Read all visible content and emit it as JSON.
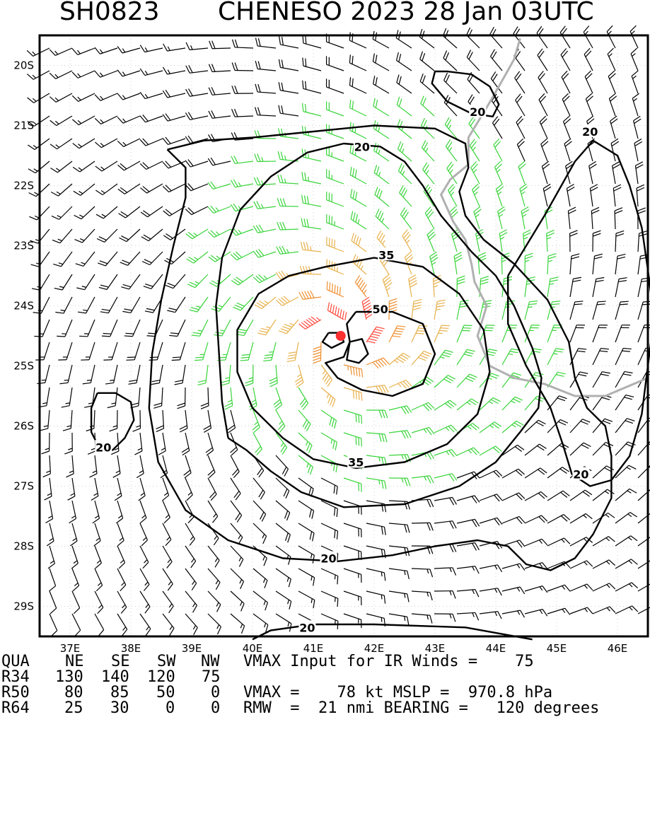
{
  "title": {
    "storm_id": "SH0823",
    "storm_time": "CHENESO 2023 28 Jan 03UTC"
  },
  "map": {
    "lon_range": [
      36.5,
      46.5
    ],
    "lat_range": [
      -29.5,
      -19.5
    ],
    "lon_labels": [
      "37E",
      "38E",
      "39E",
      "40E",
      "41E",
      "42E",
      "43E",
      "44E",
      "45E",
      "46E"
    ],
    "lat_labels": [
      "20S",
      "21S",
      "22S",
      "23S",
      "24S",
      "25S",
      "26S",
      "27S",
      "28S",
      "29S"
    ],
    "center": {
      "lon": 41.45,
      "lat": -24.5
    },
    "center_color": "#ff3030",
    "contours": [
      {
        "label": "20",
        "rings": [
          [
            [
              40.0,
              -29.55
            ],
            [
              40.3,
              -29.4
            ],
            [
              41.0,
              -29.3
            ],
            [
              42.0,
              -29.3
            ],
            [
              43.5,
              -29.35
            ],
            [
              44.6,
              -29.55
            ]
          ],
          [
            [
              39.6,
              -26.2
            ],
            [
              39.9,
              -26.4
            ],
            [
              40.3,
              -26.75
            ],
            [
              40.8,
              -27.1
            ],
            [
              41.5,
              -27.35
            ],
            [
              42.5,
              -27.3
            ],
            [
              43.4,
              -27.0
            ],
            [
              44.0,
              -26.6
            ],
            [
              44.4,
              -26.1
            ],
            [
              44.7,
              -25.7
            ],
            [
              44.75,
              -25.2
            ],
            [
              44.6,
              -24.7
            ],
            [
              44.3,
              -24.0
            ],
            [
              44.0,
              -23.5
            ],
            [
              43.6,
              -23.1
            ],
            [
              43.1,
              -22.5
            ],
            [
              42.8,
              -22.0
            ],
            [
              42.5,
              -21.6
            ],
            [
              42.1,
              -21.35
            ],
            [
              41.5,
              -21.3
            ],
            [
              40.9,
              -21.45
            ],
            [
              40.3,
              -21.85
            ],
            [
              39.8,
              -22.4
            ],
            [
              39.5,
              -23.2
            ],
            [
              39.4,
              -24.0
            ],
            [
              39.45,
              -24.8
            ],
            [
              39.5,
              -25.6
            ],
            [
              39.6,
              -26.2
            ]
          ],
          [
            [
              38.6,
              -21.4
            ],
            [
              39.2,
              -21.25
            ],
            [
              40.0,
              -21.2
            ],
            [
              41.0,
              -21.1
            ],
            [
              42.0,
              -21.0
            ],
            [
              43.0,
              -21.05
            ],
            [
              43.5,
              -21.3
            ],
            [
              43.55,
              -21.7
            ],
            [
              43.4,
              -22.1
            ],
            [
              43.5,
              -22.5
            ],
            [
              43.8,
              -22.9
            ],
            [
              44.3,
              -23.3
            ],
            [
              44.85,
              -23.9
            ],
            [
              45.2,
              -24.6
            ],
            [
              45.3,
              -25.2
            ],
            [
              45.5,
              -25.7
            ],
            [
              45.8,
              -26.0
            ],
            [
              45.9,
              -26.5
            ],
            [
              45.9,
              -27.2
            ],
            [
              45.6,
              -27.8
            ],
            [
              45.3,
              -28.2
            ],
            [
              44.9,
              -28.4
            ],
            [
              44.5,
              -28.3
            ],
            [
              44.2,
              -28.0
            ],
            [
              43.7,
              -27.9
            ],
            [
              43.0,
              -28.0
            ],
            [
              42.3,
              -28.15
            ],
            [
              41.4,
              -28.25
            ],
            [
              40.5,
              -28.2
            ],
            [
              39.6,
              -27.9
            ],
            [
              38.9,
              -27.4
            ],
            [
              38.45,
              -26.6
            ],
            [
              38.3,
              -25.7
            ],
            [
              38.35,
              -24.8
            ],
            [
              38.5,
              -23.9
            ],
            [
              38.7,
              -23.0
            ],
            [
              38.9,
              -22.2
            ],
            [
              38.9,
              -21.7
            ],
            [
              38.6,
              -21.4
            ]
          ],
          [
            [
              44.2,
              -23.5
            ],
            [
              44.8,
              -22.5
            ],
            [
              45.3,
              -21.6
            ],
            [
              45.6,
              -21.25
            ],
            [
              46.0,
              -21.5
            ],
            [
              46.2,
              -22.0
            ],
            [
              46.4,
              -22.7
            ],
            [
              46.5,
              -23.4
            ],
            [
              46.6,
              -24.2
            ],
            [
              46.5,
              -25.0
            ],
            [
              46.4,
              -25.8
            ],
            [
              46.2,
              -26.5
            ],
            [
              45.9,
              -26.9
            ],
            [
              45.55,
              -27.0
            ],
            [
              45.25,
              -26.8
            ],
            [
              45.1,
              -26.3
            ],
            [
              44.9,
              -25.7
            ],
            [
              44.5,
              -25.0
            ],
            [
              44.2,
              -24.3
            ],
            [
              44.2,
              -23.5
            ]
          ],
          [
            [
              43.2,
              -20.1
            ],
            [
              43.6,
              -20.15
            ],
            [
              43.9,
              -20.35
            ],
            [
              44.05,
              -20.65
            ],
            [
              43.95,
              -20.85
            ],
            [
              43.6,
              -20.8
            ],
            [
              43.2,
              -20.6
            ],
            [
              42.95,
              -20.3
            ],
            [
              43.0,
              -20.1
            ],
            [
              43.2,
              -20.1
            ]
          ],
          [
            [
              37.45,
              -25.45
            ],
            [
              37.75,
              -25.45
            ],
            [
              38.0,
              -25.6
            ],
            [
              38.05,
              -25.9
            ],
            [
              37.9,
              -26.2
            ],
            [
              37.7,
              -26.4
            ],
            [
              37.5,
              -26.4
            ],
            [
              37.35,
              -26.1
            ],
            [
              37.35,
              -25.7
            ],
            [
              37.45,
              -25.45
            ]
          ]
        ]
      },
      {
        "label": "35",
        "rings": [
          [
            [
              41.2,
              -23.35
            ],
            [
              42.0,
              -23.2
            ],
            [
              42.8,
              -23.35
            ],
            [
              43.4,
              -23.8
            ],
            [
              43.8,
              -24.4
            ],
            [
              43.9,
              -25.1
            ],
            [
              43.7,
              -25.8
            ],
            [
              43.2,
              -26.3
            ],
            [
              42.5,
              -26.6
            ],
            [
              41.7,
              -26.7
            ],
            [
              41.0,
              -26.55
            ],
            [
              40.5,
              -26.2
            ],
            [
              40.0,
              -25.7
            ],
            [
              39.75,
              -25.1
            ],
            [
              39.75,
              -24.4
            ],
            [
              40.1,
              -23.8
            ],
            [
              40.6,
              -23.5
            ],
            [
              41.2,
              -23.35
            ]
          ]
        ]
      },
      {
        "label": "50",
        "rings": [
          [
            [
              41.7,
              -24.1
            ],
            [
              42.3,
              -24.1
            ],
            [
              42.8,
              -24.3
            ],
            [
              43.0,
              -24.8
            ],
            [
              42.8,
              -25.3
            ],
            [
              42.3,
              -25.5
            ],
            [
              41.8,
              -25.4
            ],
            [
              41.4,
              -25.2
            ],
            [
              41.2,
              -24.95
            ],
            [
              41.5,
              -24.85
            ],
            [
              41.6,
              -24.6
            ],
            [
              41.55,
              -24.3
            ],
            [
              41.7,
              -24.1
            ]
          ],
          [
            [
              41.25,
              -24.45
            ],
            [
              41.45,
              -24.45
            ],
            [
              41.5,
              -24.6
            ],
            [
              41.3,
              -24.7
            ],
            [
              41.15,
              -24.6
            ],
            [
              41.25,
              -24.45
            ]
          ],
          [
            [
              41.6,
              -24.6
            ],
            [
              41.8,
              -24.55
            ],
            [
              41.9,
              -24.8
            ],
            [
              41.75,
              -24.95
            ],
            [
              41.55,
              -24.9
            ],
            [
              41.6,
              -24.6
            ]
          ]
        ]
      }
    ],
    "contour_labels": [
      {
        "text": "20",
        "lon": 41.8,
        "lat": -21.35
      },
      {
        "text": "20",
        "lon": 43.7,
        "lat": -20.77
      },
      {
        "text": "20",
        "lon": 45.55,
        "lat": -21.1
      },
      {
        "text": "20",
        "lon": 41.25,
        "lat": -28.2
      },
      {
        "text": "20",
        "lon": 37.55,
        "lat": -26.35
      },
      {
        "text": "20",
        "lon": 45.4,
        "lat": -26.8
      },
      {
        "text": "20",
        "lon": 40.9,
        "lat": -29.35
      },
      {
        "text": "35",
        "lon": 42.2,
        "lat": -23.15
      },
      {
        "text": "35",
        "lon": 41.7,
        "lat": -26.6
      },
      {
        "text": "50",
        "lon": 42.1,
        "lat": -24.05
      }
    ],
    "coastline": [
      [
        44.4,
        -19.55
      ],
      [
        44.3,
        -19.9
      ],
      [
        44.05,
        -20.35
      ],
      [
        43.85,
        -20.7
      ],
      [
        43.55,
        -21.2
      ],
      [
        43.55,
        -21.65
      ],
      [
        43.25,
        -21.9
      ],
      [
        43.1,
        -22.15
      ],
      [
        43.3,
        -22.6
      ],
      [
        43.5,
        -22.9
      ],
      [
        43.6,
        -23.3
      ],
      [
        43.65,
        -23.6
      ],
      [
        43.85,
        -24.0
      ],
      [
        43.7,
        -24.5
      ],
      [
        43.9,
        -25.0
      ],
      [
        44.3,
        -25.2
      ],
      [
        44.8,
        -25.3
      ],
      [
        45.3,
        -25.5
      ],
      [
        45.8,
        -25.5
      ],
      [
        46.5,
        -25.2
      ]
    ],
    "coast_color": "#b0b0b0"
  },
  "vmax_input": "VMAX Input for IR Winds =    75",
  "table": {
    "headers": [
      "QUA",
      "NE",
      "SE",
      "SW",
      "NW"
    ],
    "rows": [
      {
        "label": "R34",
        "values": [
          "130",
          "140",
          "120",
          "75"
        ]
      },
      {
        "label": "R50",
        "values": [
          "80",
          "85",
          "50",
          "0"
        ]
      },
      {
        "label": "R64",
        "values": [
          "25",
          "30",
          "0",
          "0"
        ]
      }
    ],
    "vmax_line": "VMAX =    78 kt MSLP =  970.8 hPa",
    "rmw_line": "RMW  =  21 nmi BEARING =   120 degrees"
  }
}
